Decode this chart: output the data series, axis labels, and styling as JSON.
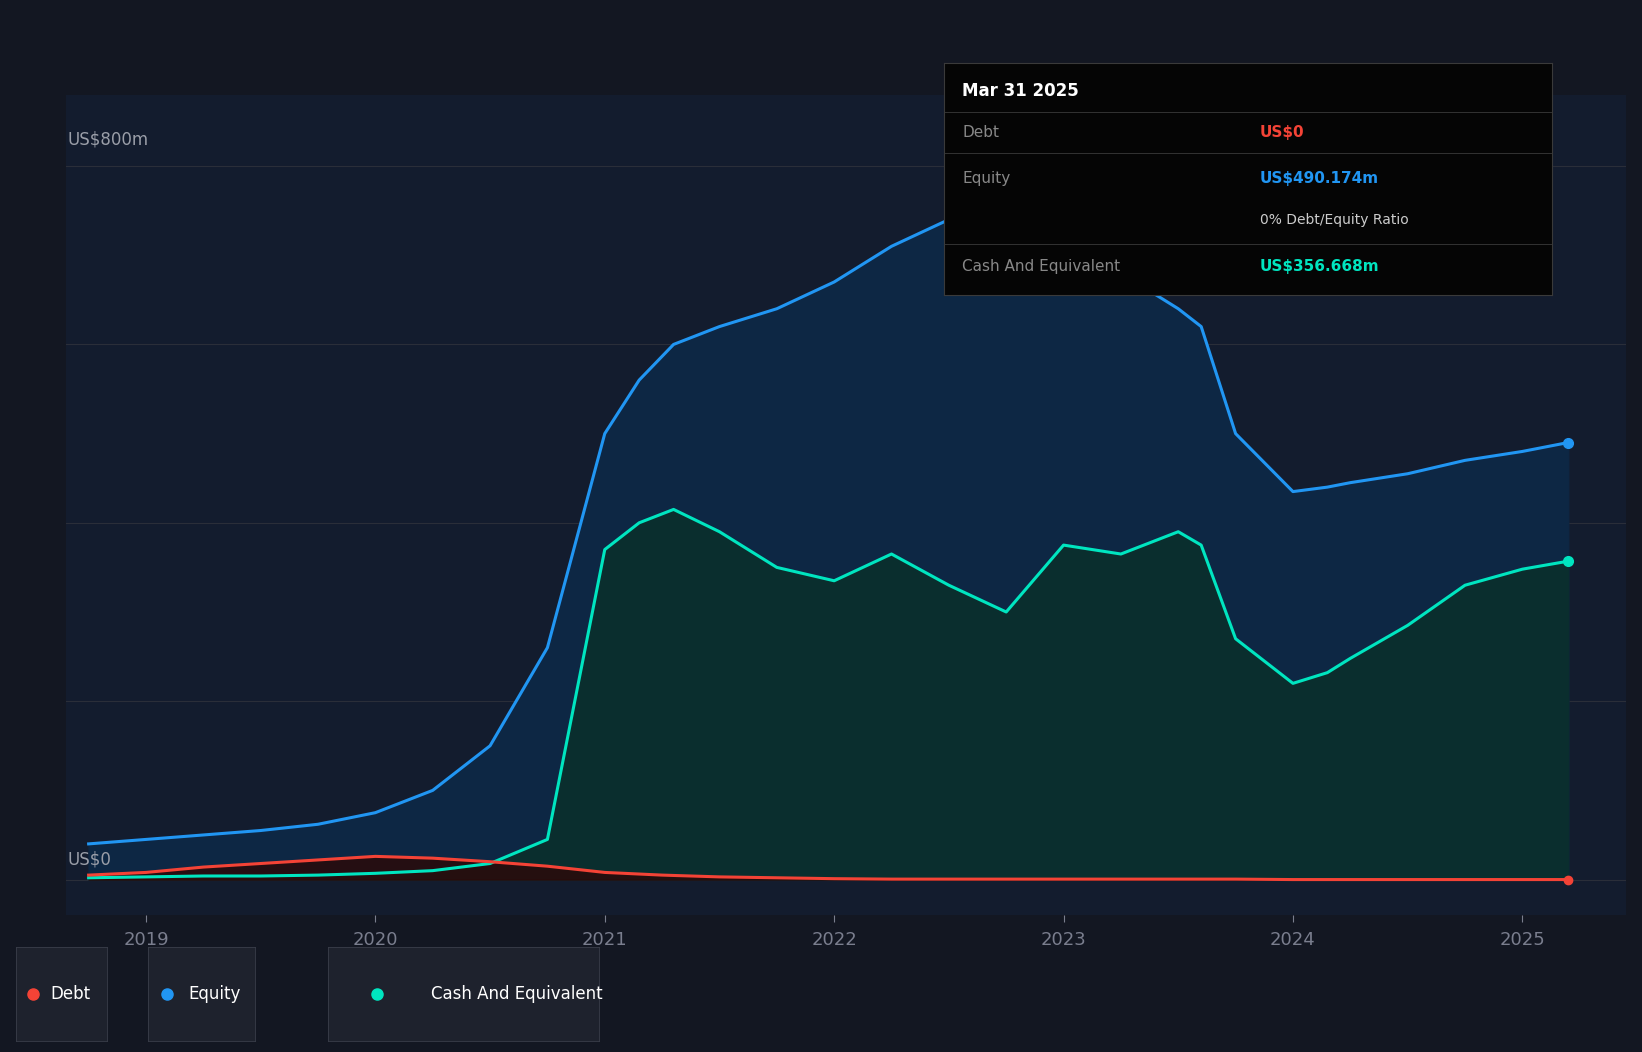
{
  "bg_color": "#131722",
  "plot_bg_color": "#131c2e",
  "grid_color": "#2a2e39",
  "ylabel": "US$800m",
  "y0_label": "US$0",
  "xlim_start": 2018.65,
  "xlim_end": 2025.45,
  "ylim_bottom": -40,
  "ylim_top": 880,
  "xticks": [
    2019,
    2020,
    2021,
    2022,
    2023,
    2024,
    2025
  ],
  "equity_color": "#2196f3",
  "equity_fill_color": "#0d2744",
  "cash_color": "#00e5c0",
  "cash_fill_color": "#0a2e2e",
  "debt_color": "#f44336",
  "debt_fill_color": "#2a0a0a",
  "tooltip_bg": "#050505",
  "tooltip_border": "#3a3a3a",
  "tooltip_title": "Mar 31 2025",
  "tooltip_debt_label": "Debt",
  "tooltip_debt_value": "US$0",
  "tooltip_debt_color": "#f44336",
  "tooltip_equity_label": "Equity",
  "tooltip_equity_value": "US$490.174m",
  "tooltip_equity_color": "#2196f3",
  "tooltip_ratio": "0% Debt/Equity Ratio",
  "tooltip_cash_label": "Cash And Equivalent",
  "tooltip_cash_value": "US$356.668m",
  "tooltip_cash_color": "#00e5c0",
  "legend_debt": "Debt",
  "legend_equity": "Equity",
  "legend_cash": "Cash And Equivalent",
  "equity_x": [
    2018.75,
    2019.0,
    2019.25,
    2019.5,
    2019.75,
    2020.0,
    2020.25,
    2020.5,
    2020.75,
    2021.0,
    2021.15,
    2021.3,
    2021.5,
    2021.75,
    2022.0,
    2022.25,
    2022.5,
    2022.6,
    2022.75,
    2023.0,
    2023.25,
    2023.5,
    2023.6,
    2023.75,
    2024.0,
    2024.15,
    2024.25,
    2024.5,
    2024.75,
    2025.0,
    2025.2
  ],
  "equity_y": [
    40,
    45,
    50,
    55,
    62,
    75,
    100,
    150,
    260,
    500,
    560,
    600,
    620,
    640,
    670,
    710,
    740,
    760,
    730,
    720,
    680,
    640,
    620,
    500,
    435,
    440,
    445,
    455,
    470,
    480,
    490
  ],
  "cash_x": [
    2018.75,
    2019.0,
    2019.25,
    2019.5,
    2019.75,
    2020.0,
    2020.25,
    2020.5,
    2020.75,
    2021.0,
    2021.15,
    2021.3,
    2021.5,
    2021.75,
    2022.0,
    2022.25,
    2022.5,
    2022.75,
    2023.0,
    2023.25,
    2023.5,
    2023.6,
    2023.75,
    2024.0,
    2024.15,
    2024.25,
    2024.5,
    2024.75,
    2025.0,
    2025.2
  ],
  "cash_y": [
    2,
    3,
    4,
    4,
    5,
    7,
    10,
    18,
    45,
    370,
    400,
    415,
    390,
    350,
    335,
    365,
    330,
    300,
    375,
    365,
    390,
    375,
    270,
    220,
    232,
    248,
    285,
    330,
    348,
    357
  ],
  "debt_x": [
    2018.75,
    2019.0,
    2019.25,
    2019.5,
    2019.75,
    2020.0,
    2020.25,
    2020.5,
    2020.75,
    2021.0,
    2021.25,
    2021.5,
    2021.75,
    2022.0,
    2022.25,
    2022.5,
    2022.75,
    2023.0,
    2023.25,
    2023.5,
    2023.75,
    2024.0,
    2024.25,
    2024.5,
    2024.75,
    2025.0,
    2025.2
  ],
  "debt_y": [
    5,
    8,
    14,
    18,
    22,
    26,
    24,
    20,
    15,
    8,
    5,
    3,
    2,
    1,
    0.5,
    0.5,
    0.5,
    0.5,
    0.5,
    0.5,
    0.5,
    0,
    0,
    0,
    0,
    0,
    0
  ]
}
